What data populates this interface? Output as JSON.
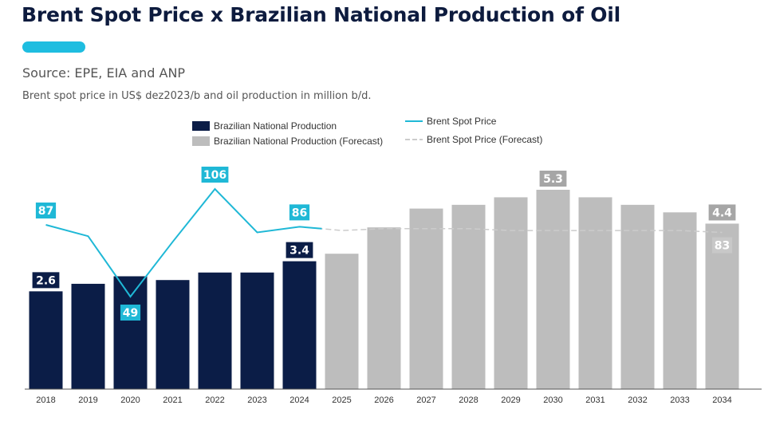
{
  "header": {
    "title": "Brent Spot Price x Brazilian National Production of Oil",
    "source": "Source: EPE, EIA and ANP",
    "subtitle": "Brent spot price in US$ dez2023/b and oil production in million b/d."
  },
  "legend": {
    "production": "Brazilian National Production",
    "production_forecast": "Brazilian National Production (Forecast)",
    "brent": "Brent Spot Price",
    "brent_forecast": "Brent Spot Price (Forecast)"
  },
  "colors": {
    "production": "#0b1d47",
    "forecast_bar": "#bdbdbd",
    "brent_line": "#1fb8d6",
    "brent_forecast_line": "#cccccc",
    "title": "#0d1b3e",
    "accent": "#1ebde0"
  },
  "chart_data": {
    "type": "bar",
    "categories": [
      "2018",
      "2019",
      "2020",
      "2021",
      "2022",
      "2023",
      "2024",
      "2025",
      "2026",
      "2027",
      "2028",
      "2029",
      "2030",
      "2031",
      "2032",
      "2033",
      "2034"
    ],
    "series": [
      {
        "name": "Brazilian National Production",
        "type": "bar",
        "values": [
          2.6,
          2.8,
          3.0,
          2.9,
          3.1,
          3.1,
          3.4,
          null,
          null,
          null,
          null,
          null,
          null,
          null,
          null,
          null,
          null
        ]
      },
      {
        "name": "Brazilian National Production (Forecast)",
        "type": "bar",
        "values": [
          null,
          null,
          null,
          null,
          null,
          null,
          null,
          3.6,
          4.3,
          4.8,
          4.9,
          5.1,
          5.3,
          5.1,
          4.9,
          4.7,
          4.4
        ]
      },
      {
        "name": "Brent Spot Price",
        "type": "line",
        "values": [
          87,
          81,
          49,
          78,
          106,
          83,
          86,
          null,
          null,
          null,
          null,
          null,
          null,
          null,
          null,
          null,
          null
        ]
      },
      {
        "name": "Brent Spot Price (Forecast)",
        "type": "line",
        "values": [
          null,
          null,
          null,
          null,
          null,
          null,
          86,
          84,
          85,
          85,
          85,
          84,
          84,
          84,
          84,
          84,
          83
        ]
      }
    ],
    "data_labels": [
      {
        "series": "Brazilian National Production",
        "category": "2018",
        "text": "2.6"
      },
      {
        "series": "Brazilian National Production",
        "category": "2024",
        "text": "3.4"
      },
      {
        "series": "Brazilian National Production (Forecast)",
        "category": "2030",
        "text": "5.3"
      },
      {
        "series": "Brazilian National Production (Forecast)",
        "category": "2034",
        "text": "4.4"
      },
      {
        "series": "Brent Spot Price",
        "category": "2018",
        "text": "87"
      },
      {
        "series": "Brent Spot Price",
        "category": "2020",
        "text": "49"
      },
      {
        "series": "Brent Spot Price",
        "category": "2022",
        "text": "106"
      },
      {
        "series": "Brent Spot Price",
        "category": "2024",
        "text": "86"
      },
      {
        "series": "Brent Spot Price (Forecast)",
        "category": "2034",
        "text": "83"
      }
    ],
    "bar_ylim": [
      0,
      5.6
    ],
    "line_ylim": [
      20,
      115
    ],
    "grid": false,
    "legend_position": "top"
  }
}
